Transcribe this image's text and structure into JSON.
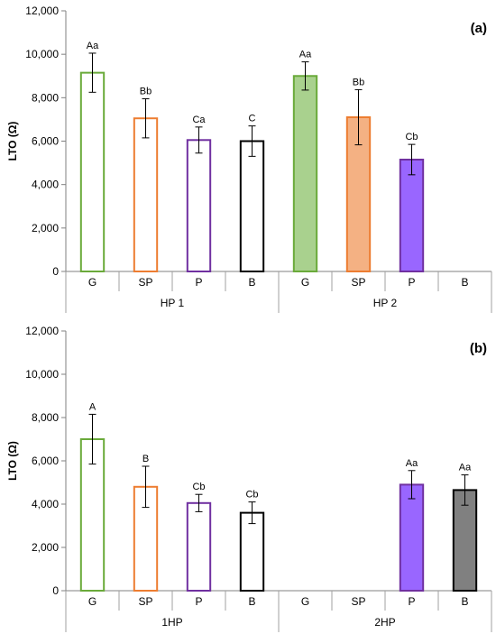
{
  "chart_data": [
    {
      "type": "bar",
      "panel_label": "(a)",
      "ylabel": "LTO (Ω)",
      "ylim": [
        0,
        12000
      ],
      "yticks": [
        "0",
        "2,000",
        "4,000",
        "6,000",
        "8,000",
        "10,000",
        "12,000"
      ],
      "groups": [
        {
          "label": "HP 1",
          "categories": [
            "G",
            "SP",
            "P",
            "B"
          ]
        },
        {
          "label": "HP 2",
          "categories": [
            "G",
            "SP",
            "P",
            "B"
          ]
        }
      ],
      "bars": [
        {
          "group": "HP 1",
          "category": "G",
          "value": 9150,
          "error": 900,
          "label": "Aa",
          "fill": "none",
          "stroke": "#6aaa3a"
        },
        {
          "group": "HP 1",
          "category": "SP",
          "value": 7050,
          "error": 900,
          "label": "Bb",
          "fill": "none",
          "stroke": "#ed7d31"
        },
        {
          "group": "HP 1",
          "category": "P",
          "value": 6050,
          "error": 600,
          "label": "Ca",
          "fill": "none",
          "stroke": "#7030a0"
        },
        {
          "group": "HP 1",
          "category": "B",
          "value": 6000,
          "error": 700,
          "label": "C",
          "fill": "none",
          "stroke": "#000000"
        },
        {
          "group": "HP 2",
          "category": "G",
          "value": 9000,
          "error": 650,
          "label": "Aa",
          "fill": "#a9d18e",
          "stroke": "#6aaa3a"
        },
        {
          "group": "HP 2",
          "category": "SP",
          "value": 7100,
          "error": 1270,
          "label": "Bb",
          "fill": "#f4b183",
          "stroke": "#ed7d31"
        },
        {
          "group": "HP 2",
          "category": "P",
          "value": 5150,
          "error": 700,
          "label": "Cb",
          "fill": "#9966ff",
          "stroke": "#7030a0"
        }
      ]
    },
    {
      "type": "bar",
      "panel_label": "(b)",
      "ylabel": "LTO (Ω)",
      "ylim": [
        0,
        12000
      ],
      "yticks": [
        "0",
        "2,000",
        "4,000",
        "6,000",
        "8,000",
        "10,000",
        "12,000"
      ],
      "groups": [
        {
          "label": "1HP",
          "categories": [
            "G",
            "SP",
            "P",
            "B"
          ]
        },
        {
          "label": "2HP",
          "categories": [
            "G",
            "SP",
            "P",
            "B"
          ]
        }
      ],
      "bars": [
        {
          "group": "1HP",
          "category": "G",
          "value": 7000,
          "error": 1150,
          "label": "A",
          "fill": "none",
          "stroke": "#6aaa3a"
        },
        {
          "group": "1HP",
          "category": "SP",
          "value": 4800,
          "error": 950,
          "label": "B",
          "fill": "none",
          "stroke": "#ed7d31"
        },
        {
          "group": "1HP",
          "category": "P",
          "value": 4050,
          "error": 400,
          "label": "Cb",
          "fill": "none",
          "stroke": "#7030a0"
        },
        {
          "group": "1HP",
          "category": "B",
          "value": 3600,
          "error": 500,
          "label": "Cb",
          "fill": "none",
          "stroke": "#000000"
        },
        {
          "group": "2HP",
          "category": "P",
          "value": 4900,
          "error": 650,
          "label": "Aa",
          "fill": "#9966ff",
          "stroke": "#7030a0"
        },
        {
          "group": "2HP",
          "category": "B",
          "value": 4650,
          "error": 700,
          "label": "Aa",
          "fill": "#808080",
          "stroke": "#000000"
        }
      ]
    }
  ]
}
